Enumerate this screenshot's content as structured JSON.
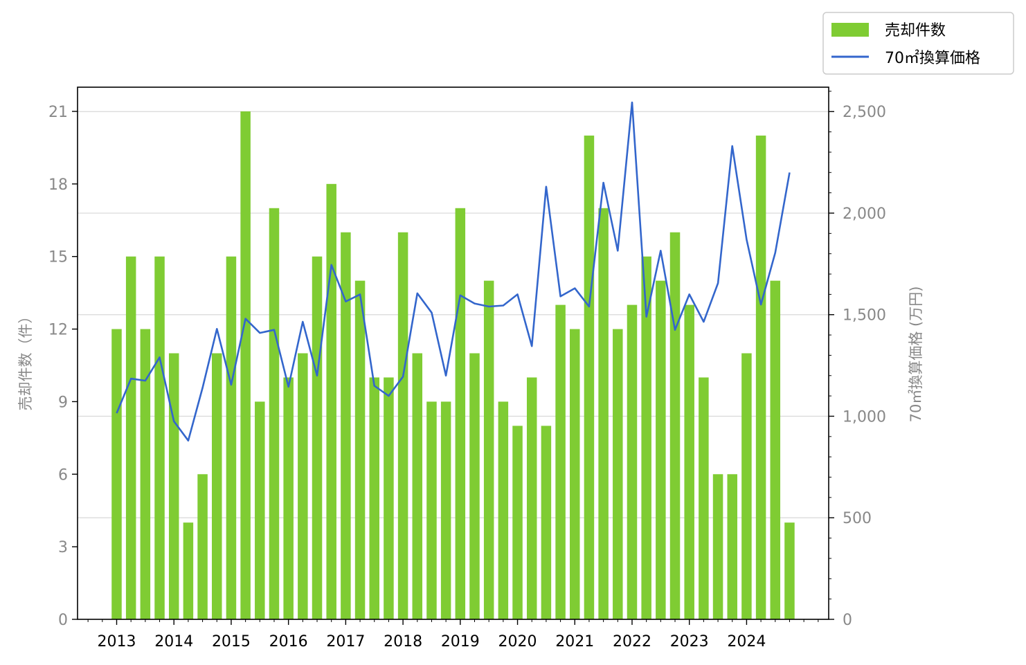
{
  "chart_data": {
    "type": "bar",
    "legend": {
      "bar_label": "売却件数",
      "line_label": "70㎡換算価格",
      "placement": "top-right, outside plot"
    },
    "y_left_label": "売却件数（件）",
    "y_right_label": "70㎡換算価格 (万円)",
    "y_left_lim": [
      0,
      22
    ],
    "y_left_ticks": [
      "0",
      "3",
      "6",
      "9",
      "12",
      "15",
      "18",
      "21"
    ],
    "y_right_lim": [
      0,
      2620
    ],
    "y_right_ticks": [
      "0",
      "500",
      "1,000",
      "1,500",
      "2,000",
      "2,500"
    ],
    "x_year_labels": [
      "2013",
      "2014",
      "2015",
      "2016",
      "2017",
      "2018",
      "2019",
      "2020",
      "2021",
      "2022",
      "2023",
      "2024"
    ],
    "grid": "horizontal, right axis",
    "colors": {
      "bar": "#7fcc33",
      "line": "#3366cc",
      "tick_text": "#888888",
      "year_text": "#000000"
    },
    "periods": [
      "2013Q1",
      "2013Q2",
      "2013Q3",
      "2013Q4",
      "2014Q1",
      "2014Q2",
      "2014Q3",
      "2014Q4",
      "2015Q1",
      "2015Q2",
      "2015Q3",
      "2015Q4",
      "2016Q1",
      "2016Q2",
      "2016Q3",
      "2016Q4",
      "2017Q1",
      "2017Q2",
      "2017Q3",
      "2017Q4",
      "2018Q1",
      "2018Q2",
      "2018Q3",
      "2018Q4",
      "2019Q1",
      "2019Q2",
      "2019Q3",
      "2019Q4",
      "2020Q1",
      "2020Q2",
      "2020Q3",
      "2020Q4",
      "2021Q1",
      "2021Q2",
      "2021Q3",
      "2021Q4",
      "2022Q1",
      "2022Q2",
      "2022Q3",
      "2022Q4",
      "2023Q1",
      "2023Q2",
      "2023Q3",
      "2023Q4",
      "2024Q1",
      "2024Q2",
      "2024Q3",
      "2024Q4"
    ],
    "series": [
      {
        "name": "売却件数",
        "kind": "bar",
        "axis": "left",
        "values": [
          12,
          15,
          12,
          15,
          11,
          4,
          6,
          11,
          15,
          21,
          9,
          17,
          10,
          11,
          15,
          18,
          16,
          14,
          10,
          10,
          16,
          11,
          9,
          9,
          17,
          11,
          14,
          9,
          8,
          10,
          8,
          13,
          12,
          20,
          17,
          12,
          13,
          15,
          14,
          16,
          13,
          10,
          6,
          6,
          11,
          20,
          14,
          4
        ]
      },
      {
        "name": "70㎡換算価格",
        "kind": "line",
        "axis": "right",
        "values": [
          1015,
          1185,
          1175,
          1290,
          975,
          880,
          1140,
          1430,
          1155,
          1480,
          1410,
          1425,
          1145,
          1465,
          1200,
          1745,
          1565,
          1600,
          1150,
          1100,
          1195,
          1605,
          1510,
          1200,
          1595,
          1555,
          1540,
          1545,
          1600,
          1345,
          2130,
          1590,
          1630,
          1540,
          2150,
          1815,
          2545,
          1490,
          1815,
          1425,
          1600,
          1465,
          1655,
          2330,
          1870,
          1550,
          1805,
          2200
        ]
      }
    ]
  }
}
